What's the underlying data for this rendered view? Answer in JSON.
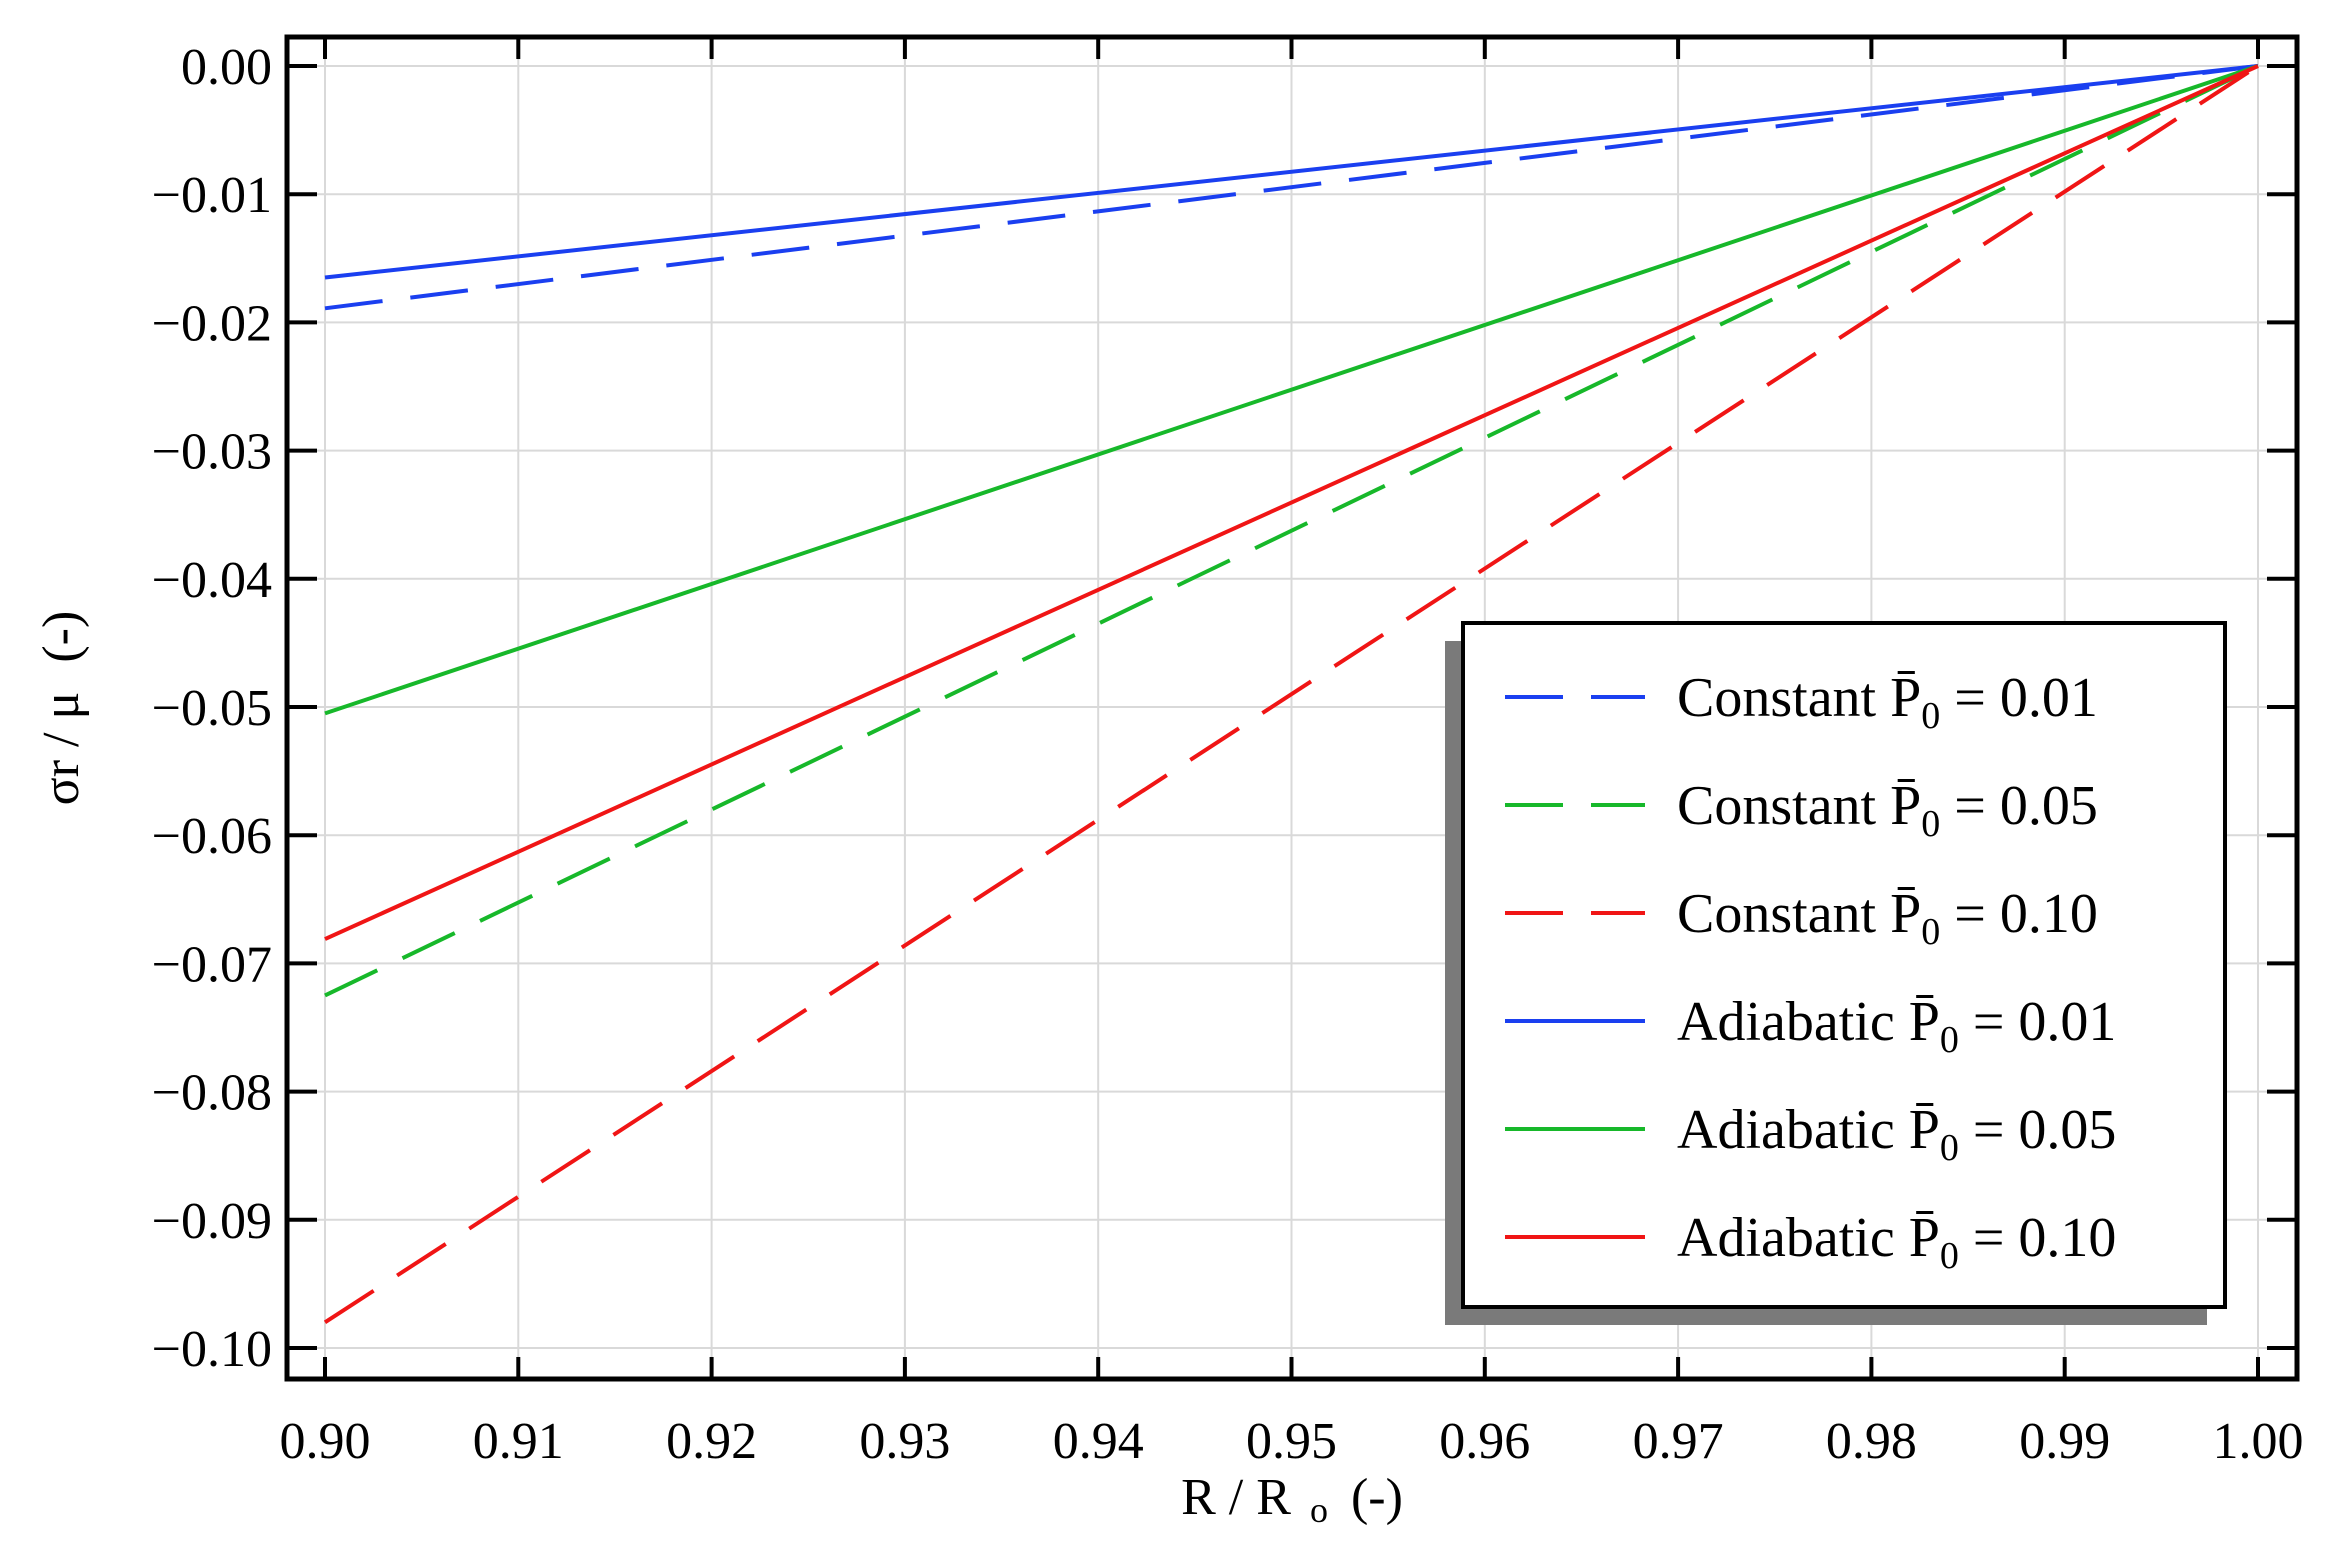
{
  "chart_data": {
    "type": "line",
    "title": "",
    "xlabel": {
      "main": "R / R",
      "sub": "o",
      "unit": "(-)"
    },
    "ylabel": {
      "main": "σr / μ",
      "unit": "(-)"
    },
    "xlim": [
      0.9,
      1.0
    ],
    "ylim": [
      -0.1,
      0.0
    ],
    "x_ticks": [
      "0.90",
      "0.91",
      "0.92",
      "0.93",
      "0.94",
      "0.95",
      "0.96",
      "0.97",
      "0.98",
      "0.99",
      "1.00"
    ],
    "y_ticks": [
      "0.00",
      "−0.01",
      "−0.02",
      "−0.03",
      "−0.04",
      "−0.05",
      "−0.06",
      "−0.07",
      "−0.08",
      "−0.09",
      "−0.10"
    ],
    "grid": true,
    "legend_position": "bottom-right",
    "series": [
      {
        "name": "Constant P̄0 = 0.01",
        "kind": "Constant",
        "p0": "0.01",
        "color": "#1a3ff0",
        "style": "dashed",
        "x": [
          0.9,
          1.0
        ],
        "y": [
          -0.0189,
          0.0
        ]
      },
      {
        "name": "Constant P̄0 = 0.05",
        "kind": "Constant",
        "p0": "0.05",
        "color": "#17b82a",
        "style": "dashed",
        "x": [
          0.9,
          1.0
        ],
        "y": [
          -0.0725,
          0.0
        ]
      },
      {
        "name": "Constant P̄0 = 0.10",
        "kind": "Constant",
        "p0": "0.10",
        "color": "#f01515",
        "style": "dashed",
        "x": [
          0.9,
          1.0
        ],
        "y": [
          -0.098,
          0.0
        ]
      },
      {
        "name": "Adiabatic P̄0 = 0.01",
        "kind": "Adiabatic",
        "p0": "0.01",
        "color": "#1a3ff0",
        "style": "solid",
        "x": [
          0.9,
          1.0
        ],
        "y": [
          -0.0165,
          0.0
        ]
      },
      {
        "name": "Adiabatic P̄0 = 0.05",
        "kind": "Adiabatic",
        "p0": "0.05",
        "color": "#17b82a",
        "style": "solid",
        "x": [
          0.9,
          1.0
        ],
        "y": [
          -0.0505,
          0.0
        ]
      },
      {
        "name": "Adiabatic P̄0 = 0.10",
        "kind": "Adiabatic",
        "p0": "0.10",
        "color": "#f01515",
        "style": "solid",
        "x": [
          0.9,
          1.0
        ],
        "y": [
          -0.0681,
          0.0
        ]
      }
    ]
  }
}
